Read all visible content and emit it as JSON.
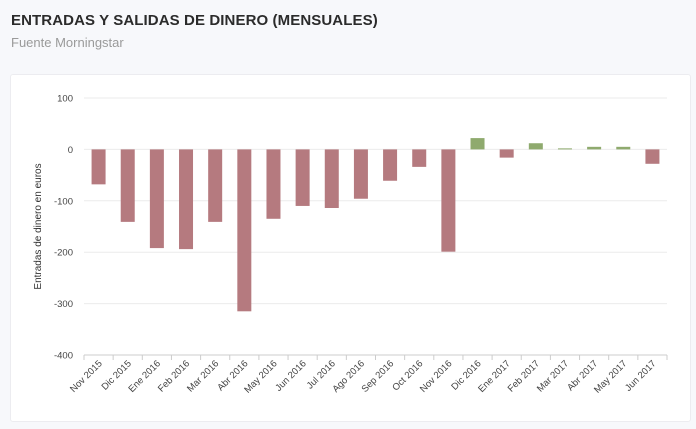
{
  "header": {
    "title": "ENTRADAS Y SALIDAS DE DINERO (MENSUALES)",
    "subtitle": "Fuente Morningstar"
  },
  "colors": {
    "negative": "#b57a7f",
    "positive": "#8faa6e",
    "gridline": "#ebebeb",
    "axis": "#cccccc"
  },
  "chart_data": {
    "type": "bar",
    "title": "ENTRADAS Y SALIDAS DE DINERO (MENSUALES)",
    "subtitle": "Fuente Morningstar",
    "xlabel": "",
    "ylabel": "Entradas de dinero en euros",
    "ylim": [
      -400,
      100
    ],
    "yticks": [
      100,
      0,
      -100,
      -200,
      -300,
      -400
    ],
    "grid": true,
    "categories": [
      "Nov 2015",
      "Dic 2015",
      "Ene 2016",
      "Feb 2016",
      "Mar 2016",
      "Abr 2016",
      "May 2016",
      "Jun 2016",
      "Jul 2016",
      "Ago 2016",
      "Sep 2016",
      "Oct 2016",
      "Nov 2016",
      "Dic 2016",
      "Ene 2017",
      "Feb 2017",
      "Mar 2017",
      "Abr 2017",
      "May 2017",
      "Jun 2017"
    ],
    "values": [
      -68,
      -141,
      -192,
      -194,
      -141,
      -315,
      -135,
      -110,
      -114,
      -96,
      -61,
      -34,
      -199,
      22,
      -16,
      12,
      2,
      5,
      5,
      -28
    ]
  }
}
